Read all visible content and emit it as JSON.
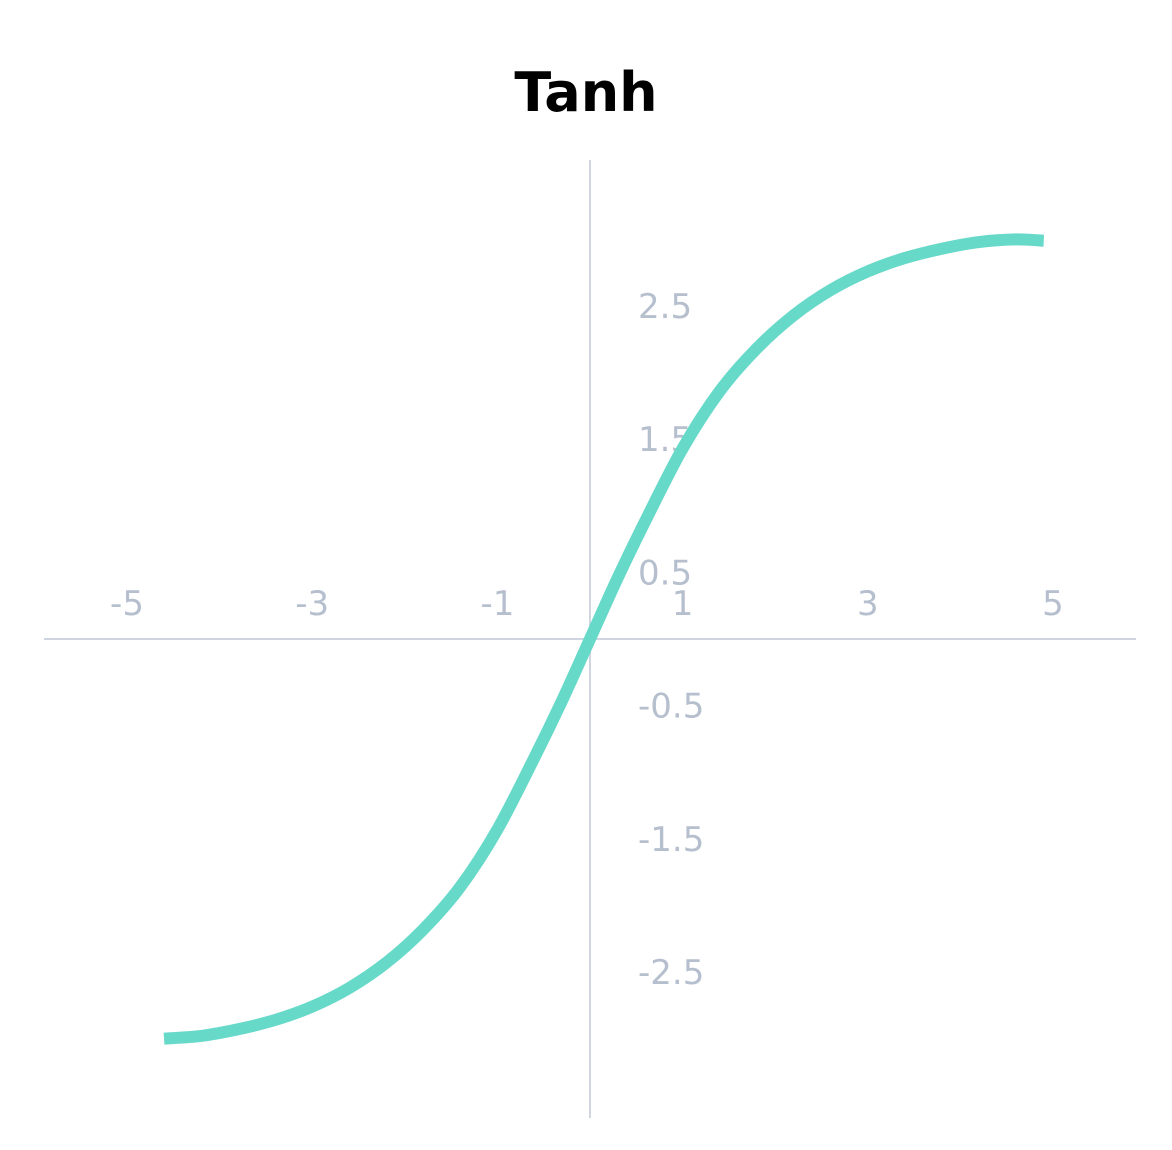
{
  "chart_data": {
    "type": "line",
    "title": "Tanh",
    "xlabel": "",
    "ylabel": "",
    "xlim": [
      -5.5,
      5.8
    ],
    "ylim": [
      -3.6,
      3.6
    ],
    "x_ticks": [
      -5,
      -3,
      -1,
      1,
      3,
      5
    ],
    "x_tick_labels": [
      "-5",
      "-3",
      "-1",
      "1",
      "3",
      "5"
    ],
    "y_ticks": [
      2.5,
      1.5,
      0.5,
      -0.5,
      -1.5,
      -2.5
    ],
    "y_tick_labels": [
      "2.5",
      "1.5",
      "0.5",
      "-0.5",
      "-1.5",
      "-2.5"
    ],
    "grid": false,
    "series": [
      {
        "x": [
          -4.6,
          -4.2,
          -3.8,
          -3.4,
          -3.0,
          -2.6,
          -2.2,
          -1.8,
          -1.4,
          -1.0,
          -0.6,
          -0.3,
          0.0,
          0.3,
          0.6,
          1.0,
          1.4,
          1.8,
          2.2,
          2.6,
          3.0,
          3.4,
          3.8,
          4.2,
          4.6,
          4.9
        ],
        "y": [
          -3.0,
          -2.98,
          -2.93,
          -2.86,
          -2.76,
          -2.62,
          -2.43,
          -2.18,
          -1.86,
          -1.43,
          -0.89,
          -0.46,
          0.0,
          0.46,
          0.89,
          1.43,
          1.86,
          2.18,
          2.43,
          2.62,
          2.76,
          2.86,
          2.93,
          2.98,
          3.0,
          2.99
        ]
      }
    ],
    "colors": {
      "line": "#66d9c8",
      "axis": "#cfd6e2",
      "tick_label": "#b6bfce"
    }
  }
}
